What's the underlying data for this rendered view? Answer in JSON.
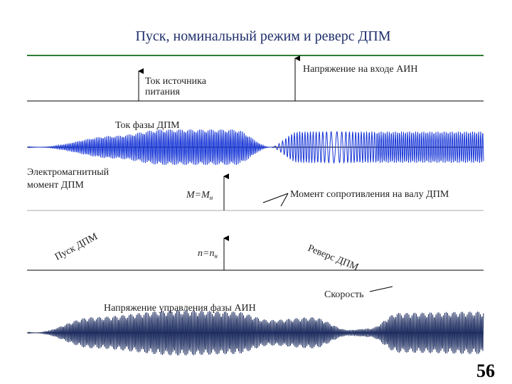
{
  "header": {
    "title": "Пуск, номинальный режим и реверс ДПМ"
  },
  "labels": {
    "source_current": [
      "Ток источника",
      "питания"
    ],
    "inverter_voltage": "Напряжение на входе АИН",
    "phase_current": "Ток фазы ДПМ",
    "em_torque": [
      "Электромагнитный",
      "момент ДПМ"
    ],
    "torque_eq": {
      "left": "M=M",
      "sub": "н"
    },
    "load_torque": "Момент сопротивления на валу ДПМ",
    "start": "Пуск ДПМ",
    "speed_eq": {
      "left": "n=n",
      "sub": "н"
    },
    "reverse": "Реверс ДПМ",
    "speed": "Скорость",
    "control_voltage": "Напряжение управления фазы АИН"
  },
  "footer": {
    "page": "56"
  }
}
